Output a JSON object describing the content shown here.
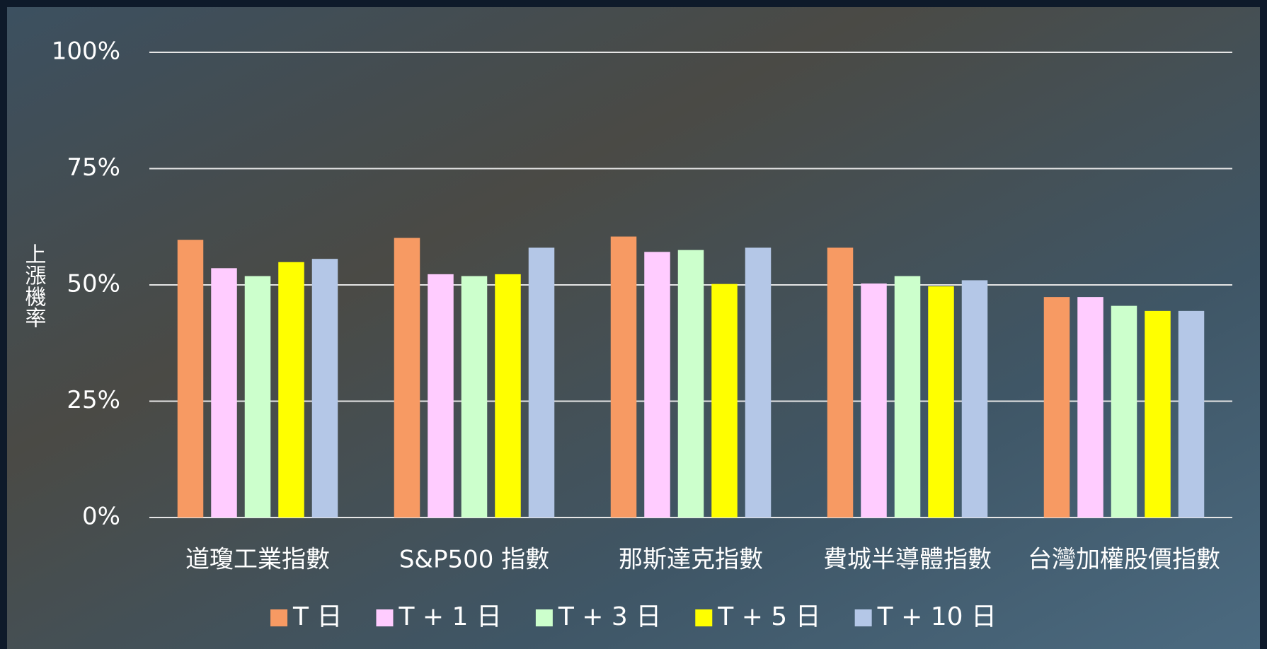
{
  "chart_data": {
    "type": "bar",
    "y_label": "上漲機率",
    "categories": [
      "道瓊工業指數",
      "S&P500 指數",
      "那斯達克指數",
      "費城半導體指數",
      "台灣加權股價指數"
    ],
    "series": [
      {
        "name": "T 日",
        "color": "#f79a63",
        "values": [
          59.7,
          60.1,
          60.4,
          58.0,
          47.4
        ]
      },
      {
        "name": "T + 1 日",
        "color": "#ffccff",
        "values": [
          53.6,
          52.3,
          57.1,
          50.3,
          47.4
        ]
      },
      {
        "name": "T + 3 日",
        "color": "#ccffcc",
        "values": [
          51.9,
          51.9,
          57.5,
          51.9,
          45.5
        ]
      },
      {
        "name": "T + 5 日",
        "color": "#ffff00",
        "values": [
          54.9,
          52.3,
          50.2,
          49.7,
          44.4
        ]
      },
      {
        "name": "T + 10 日",
        "color": "#b4c7e7",
        "values": [
          55.6,
          58.0,
          58.0,
          51.0,
          44.4
        ]
      }
    ],
    "ylim": [
      0,
      100
    ],
    "yticks": [
      {
        "value": 0,
        "label": "0%"
      },
      {
        "value": 25,
        "label": "25%"
      },
      {
        "value": 50,
        "label": "50%"
      },
      {
        "value": 75,
        "label": "75%"
      },
      {
        "value": 100,
        "label": "100%"
      }
    ],
    "grid": true
  }
}
